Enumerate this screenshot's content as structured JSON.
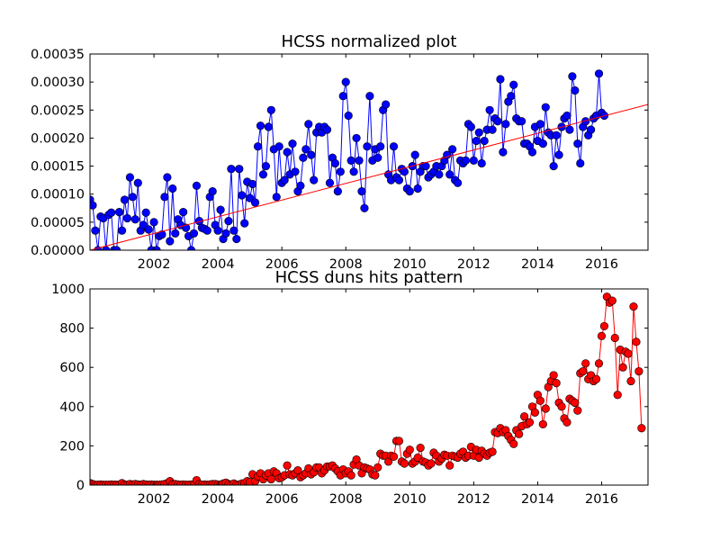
{
  "chart_data": [
    {
      "type": "line",
      "title": "HCSS normalized plot",
      "xlabel": "",
      "ylabel": "",
      "xlim": [
        2000.0,
        2017.45
      ],
      "ylim": [
        0,
        0.00035
      ],
      "x_ticks": [
        2002,
        2004,
        2006,
        2008,
        2010,
        2012,
        2014,
        2016
      ],
      "x_tick_labels": [
        "2002",
        "2004",
        "2006",
        "2008",
        "2010",
        "2012",
        "2014",
        "2016"
      ],
      "y_ticks": [
        0,
        5e-05,
        0.0001,
        0.00015,
        0.0002,
        0.00025,
        0.0003,
        0.00035
      ],
      "y_tick_labels": [
        "0.00000",
        "0.00005",
        "0.00010",
        "0.00015",
        "0.00020",
        "0.00025",
        "0.00030",
        "0.00035"
      ],
      "grid": false,
      "series": [
        {
          "color": "#0000ff",
          "marker": "circle",
          "x_start": 2000.0,
          "x_step": 0.08333,
          "values": [
            9e-05,
            8e-05,
            3.5e-05,
            0,
            6e-05,
            5.7e-05,
            0,
            6.3e-05,
            6.7e-05,
            0,
            0,
            6.8e-05,
            3.5e-05,
            9e-05,
            5.7e-05,
            0.00013,
            9.5e-05,
            5.5e-05,
            0.00012,
            3.5e-05,
            4.5e-05,
            6.7e-05,
            3.7e-05,
            0,
            5e-05,
            0,
            2.5e-05,
            2.8e-05,
            9.5e-05,
            0.00013,
            1.6e-05,
            0.00011,
            3e-05,
            5.5e-05,
            4.5e-05,
            6.8e-05,
            4e-05,
            2.5e-05,
            0,
            3e-05,
            0.000115,
            5.2e-05,
            4e-05,
            3.8e-05,
            3.5e-05,
            9.5e-05,
            0.000105,
            4.5e-05,
            3.5e-05,
            7.2e-05,
            2e-05,
            3e-05,
            5.2e-05,
            0.000145,
            3.5e-05,
            2e-05,
            0.000145,
            9.8e-05,
            4.8e-05,
            0.000122,
            9.3e-05,
            0.000118,
            8.5e-05,
            0.000185,
            0.000222,
            0.000135,
            0.00015,
            0.00022,
            0.00025,
            0.00018,
            9.5e-05,
            0.000185,
            0.00012,
            0.000125,
            0.000175,
            0.000135,
            0.00019,
            0.00014,
            0.000105,
            0.000115,
            0.000165,
            0.00018,
            0.000225,
            0.00017,
            0.000125,
            0.00021,
            0.00022,
            0.00021,
            0.00022,
            0.000215,
            0.00012,
            0.000165,
            0.000155,
            0.000105,
            0.00014,
            0.000275,
            0.0003,
            0.00024,
            0.00016,
            0.00014,
            0.0002,
            0.00016,
            0.000105,
            7.5e-05,
            0.000185,
            0.000275,
            0.00016,
            0.00018,
            0.000165,
            0.000185,
            0.00025,
            0.00026,
            0.000135,
            0.000125,
            0.000185,
            0.00013,
            0.000125,
            0.000145,
            0.00014,
            0.00011,
            0.000105,
            0.00015,
            0.00017,
            0.00011,
            0.00014,
            0.00015,
            0.00015,
            0.00013,
            0.000135,
            0.00014,
            0.00015,
            0.000135,
            0.00015,
            0.00016,
            0.00017,
            0.000135,
            0.00018,
            0.000125,
            0.00012,
            0.00016,
            0.000155,
            0.00016,
            0.000225,
            0.00022,
            0.00016,
            0.000195,
            0.00021,
            0.000155,
            0.000195,
            0.000215,
            0.00025,
            0.000215,
            0.000235,
            0.00023,
            0.000305,
            0.000175,
            0.000225,
            0.000265,
            0.000275,
            0.000295,
            0.000235,
            0.00023,
            0.00023,
            0.00019,
            0.00019,
            0.000185,
            0.000175,
            0.00022,
            0.000195,
            0.000225,
            0.00019,
            0.000255,
            0.00021,
            0.000205,
            0.00015,
            0.000205,
            0.00017,
            0.00022,
            0.000235,
            0.00024,
            0.000215,
            0.00031,
            0.000285,
            0.00019,
            0.000155,
            0.00022,
            0.00023,
            0.000205,
            0.000215,
            0.000235,
            0.00024,
            0.000315,
            0.000245,
            0.00024
          ]
        },
        {
          "color": "#ff0000",
          "marker": "none",
          "x": [
            2000.0,
            2017.45
          ],
          "values": [
            0,
            0.00026
          ]
        }
      ]
    },
    {
      "type": "line",
      "title": "HCSS duns hits pattern",
      "xlabel": "",
      "ylabel": "",
      "xlim": [
        2000.0,
        2017.45
      ],
      "ylim": [
        0,
        1000
      ],
      "x_ticks": [
        2002,
        2004,
        2006,
        2008,
        2010,
        2012,
        2014,
        2016
      ],
      "x_tick_labels": [
        "2002",
        "2004",
        "2006",
        "2008",
        "2010",
        "2012",
        "2014",
        "2016"
      ],
      "y_ticks": [
        0,
        200,
        400,
        600,
        800,
        1000
      ],
      "y_tick_labels": [
        "0",
        "200",
        "400",
        "600",
        "800",
        "1000"
      ],
      "grid": false,
      "series": [
        {
          "color": "#ff0000",
          "marker": "circle",
          "x_start": 2000.0,
          "x_step": 0.08333,
          "values": [
            10,
            5,
            2,
            2,
            3,
            2,
            2,
            2,
            3,
            2,
            2,
            2,
            10,
            3,
            2,
            5,
            3,
            5,
            3,
            2,
            5,
            3,
            2,
            3,
            2,
            2,
            2,
            3,
            5,
            10,
            20,
            5,
            5,
            3,
            2,
            3,
            2,
            2,
            3,
            2,
            25,
            5,
            2,
            3,
            2,
            3,
            5,
            5,
            3,
            2,
            8,
            12,
            5,
            3,
            8,
            2,
            3,
            8,
            10,
            20,
            15,
            55,
            20,
            45,
            60,
            30,
            50,
            60,
            30,
            70,
            60,
            35,
            40,
            50,
            100,
            55,
            50,
            60,
            75,
            40,
            50,
            60,
            85,
            55,
            65,
            90,
            90,
            60,
            75,
            95,
            95,
            100,
            85,
            70,
            50,
            80,
            60,
            70,
            50,
            105,
            130,
            100,
            60,
            90,
            85,
            80,
            55,
            50,
            90,
            160,
            150,
            150,
            120,
            150,
            145,
            225,
            225,
            120,
            110,
            160,
            180,
            110,
            120,
            140,
            190,
            120,
            115,
            100,
            110,
            165,
            150,
            120,
            135,
            155,
            150,
            100,
            150,
            145,
            140,
            160,
            170,
            140,
            150,
            195,
            150,
            180,
            140,
            175,
            160,
            150,
            165,
            170,
            270,
            265,
            290,
            270,
            280,
            250,
            230,
            210,
            280,
            260,
            300,
            350,
            310,
            320,
            400,
            370,
            460,
            430,
            310,
            390,
            500,
            530,
            560,
            520,
            420,
            400,
            340,
            320,
            440,
            430,
            420,
            380,
            570,
            580,
            620,
            540,
            560,
            530,
            540,
            620,
            760,
            810,
            960,
            930,
            940,
            750,
            460,
            690,
            600,
            680,
            670,
            530,
            910,
            730,
            580,
            290
          ]
        }
      ]
    }
  ]
}
